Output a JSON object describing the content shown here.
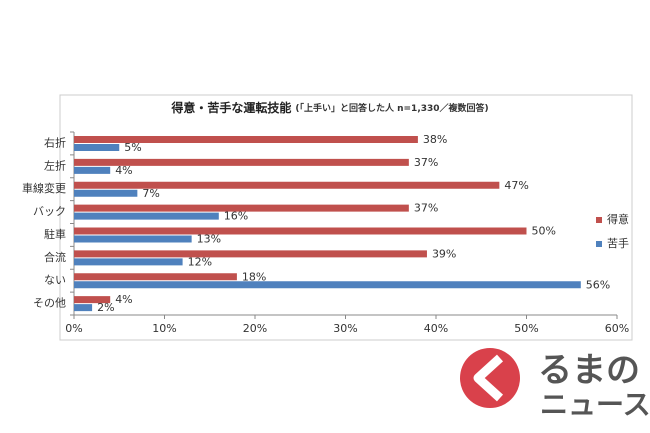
{
  "chart_data": {
    "type": "bar",
    "orientation": "horizontal",
    "title": "得意・苦手な運転技能",
    "subtitle": "(「上手い」と回答した人 n=1,330／複数回答)",
    "categories": [
      "右折",
      "左折",
      "車線変更",
      "バック",
      "駐車",
      "合流",
      "ない",
      "その他"
    ],
    "series": [
      {
        "name": "得意",
        "color": "#c0504d",
        "values": [
          38,
          37,
          47,
          37,
          50,
          39,
          18,
          4
        ],
        "value_labels": [
          "38%",
          "37%",
          "47%",
          "37%",
          "50%",
          "39%",
          "18%",
          "4%"
        ]
      },
      {
        "name": "苦手",
        "color": "#4f81bd",
        "values": [
          5,
          4,
          7,
          16,
          13,
          12,
          56,
          2
        ],
        "value_labels": [
          "5%",
          "4%",
          "7%",
          "16%",
          "13%",
          "12%",
          "56%",
          "2%"
        ]
      }
    ],
    "xlim": [
      0,
      60
    ],
    "xticks": [
      {
        "value": 0,
        "label": "0%"
      },
      {
        "value": 10,
        "label": "10%"
      },
      {
        "value": 20,
        "label": "20%"
      },
      {
        "value": 30,
        "label": "30%"
      },
      {
        "value": 40,
        "label": "40%"
      },
      {
        "value": 50,
        "label": "50%"
      },
      {
        "value": 60,
        "label": "60%"
      }
    ],
    "legend": "right"
  },
  "watermark": {
    "line1": "るまの",
    "line2": "ニュース"
  }
}
